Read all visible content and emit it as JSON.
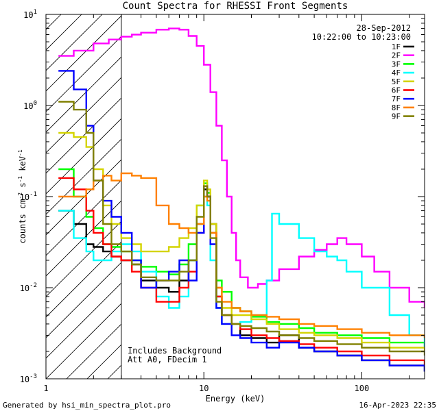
{
  "chart_data": {
    "type": "line",
    "title": "Count Spectra for RHESSI Front Segments",
    "xlabel": "Energy (keV)",
    "ylabel": "counts cm",
    "ylabel_parts": {
      "base": "counts cm",
      "e1": "-2",
      "mid": " s",
      "e2": "-1",
      "unit": " keV",
      "e3": "-1"
    },
    "x_scale": "log",
    "y_scale": "log",
    "xlim": [
      1,
      250
    ],
    "ylim": [
      0.001,
      10
    ],
    "x_ticks": [
      {
        "value": 1,
        "label": "1"
      },
      {
        "value": 10,
        "label": "10"
      },
      {
        "value": 100,
        "label": "100"
      }
    ],
    "y_ticks": [
      {
        "value": 0.001,
        "base": "10",
        "exp": "-3"
      },
      {
        "value": 0.01,
        "base": "10",
        "exp": "-2"
      },
      {
        "value": 0.1,
        "base": "10",
        "exp": "-1"
      },
      {
        "value": 1,
        "base": "10",
        "exp": "0"
      },
      {
        "value": 10,
        "base": "10",
        "exp": "1"
      }
    ],
    "date": "28-Sep-2012",
    "time_range": "10:22:00 to 10:23:00",
    "annotation_lines": [
      "Includes Background",
      "Att A0, FDecim 1"
    ],
    "shaded_region": [
      1,
      3
    ],
    "legend_position": "top-right",
    "footer_left": "Generated by hsi_min_spectra_plot.pro",
    "footer_right": "16-Apr-2023 22:35",
    "series": [
      {
        "name": "1F",
        "color": "#000000",
        "x": [
          1.2,
          1.5,
          1.8,
          2.0,
          2.3,
          2.6,
          3.0,
          3.5,
          4.0,
          5.0,
          6.0,
          7.0,
          8.0,
          9.0,
          10.0,
          10.5,
          11.0,
          12.0,
          13.0,
          15.0,
          17.0,
          20.0,
          25.0,
          30.0,
          40.0,
          50.0,
          70.0,
          100.0,
          150.0,
          250.0
        ],
        "y": [
          0.07,
          0.05,
          0.03,
          0.028,
          0.025,
          0.022,
          0.02,
          0.018,
          0.012,
          0.01,
          0.009,
          0.012,
          0.02,
          0.05,
          0.12,
          0.1,
          0.05,
          0.008,
          0.005,
          0.004,
          0.003,
          0.0028,
          0.0025,
          0.003,
          0.0022,
          0.002,
          0.0018,
          0.0016,
          0.0014,
          0.0012
        ]
      },
      {
        "name": "2F",
        "color": "#ff00ff",
        "x": [
          1.2,
          1.5,
          2.0,
          2.5,
          3.0,
          3.5,
          4.0,
          5.0,
          6.0,
          6.5,
          7.0,
          8.0,
          9.0,
          10.0,
          11.0,
          12.0,
          13.0,
          14.0,
          15.0,
          16.0,
          17.0,
          19.0,
          22.0,
          25.0,
          30.0,
          40.0,
          50.0,
          60.0,
          70.0,
          80.0,
          100.0,
          120.0,
          150.0,
          200.0,
          250.0
        ],
        "y": [
          3.5,
          4.0,
          4.8,
          5.3,
          5.7,
          6.0,
          6.3,
          6.8,
          7.0,
          7.0,
          6.8,
          5.8,
          4.5,
          2.8,
          1.4,
          0.6,
          0.25,
          0.1,
          0.04,
          0.02,
          0.013,
          0.01,
          0.011,
          0.012,
          0.016,
          0.022,
          0.026,
          0.03,
          0.035,
          0.03,
          0.022,
          0.015,
          0.01,
          0.007,
          0.006
        ]
      },
      {
        "name": "3F",
        "color": "#00ff00",
        "x": [
          1.2,
          1.5,
          1.8,
          2.0,
          2.3,
          2.6,
          3.0,
          3.5,
          4.0,
          5.0,
          6.0,
          7.0,
          8.0,
          9.0,
          10.0,
          10.5,
          11.0,
          12.0,
          13.0,
          15.0,
          17.0,
          20.0,
          25.0,
          30.0,
          40.0,
          50.0,
          70.0,
          100.0,
          150.0,
          250.0
        ],
        "y": [
          0.2,
          0.1,
          0.06,
          0.045,
          0.03,
          0.028,
          0.025,
          0.02,
          0.017,
          0.015,
          0.014,
          0.018,
          0.03,
          0.08,
          0.14,
          0.11,
          0.04,
          0.012,
          0.009,
          0.006,
          0.0055,
          0.0048,
          0.0042,
          0.004,
          0.0036,
          0.0032,
          0.003,
          0.0028,
          0.0025,
          0.0022
        ]
      },
      {
        "name": "4F",
        "color": "#00ffff",
        "x": [
          1.2,
          1.5,
          1.8,
          2.0,
          2.3,
          2.6,
          3.0,
          3.5,
          4.0,
          5.0,
          6.0,
          7.0,
          8.0,
          9.0,
          10.0,
          10.5,
          11.0,
          12.0,
          13.0,
          15.0,
          17.0,
          20.0,
          25.0,
          27.0,
          30.0,
          40.0,
          50.0,
          60.0,
          70.0,
          80.0,
          100.0,
          150.0,
          200.0,
          250.0
        ],
        "y": [
          0.07,
          0.035,
          0.025,
          0.02,
          0.02,
          0.025,
          0.03,
          0.025,
          0.015,
          0.008,
          0.006,
          0.008,
          0.02,
          0.05,
          0.1,
          0.08,
          0.02,
          0.006,
          0.004,
          0.004,
          0.0042,
          0.005,
          0.012,
          0.065,
          0.05,
          0.035,
          0.025,
          0.022,
          0.02,
          0.015,
          0.01,
          0.005,
          0.003,
          0.0022
        ]
      },
      {
        "name": "5F",
        "color": "#d4d400",
        "x": [
          1.2,
          1.5,
          1.8,
          2.0,
          2.3,
          2.6,
          3.0,
          3.5,
          4.0,
          5.0,
          6.0,
          7.0,
          8.0,
          9.0,
          10.0,
          10.5,
          11.0,
          12.0,
          13.0,
          15.0,
          17.0,
          20.0,
          25.0,
          30.0,
          40.0,
          50.0,
          70.0,
          100.0,
          150.0,
          250.0
        ],
        "y": [
          0.5,
          0.45,
          0.35,
          0.2,
          0.08,
          0.05,
          0.035,
          0.03,
          0.025,
          0.025,
          0.028,
          0.035,
          0.045,
          0.08,
          0.15,
          0.12,
          0.05,
          0.01,
          0.006,
          0.005,
          0.005,
          0.0045,
          0.004,
          0.0035,
          0.0032,
          0.003,
          0.0028,
          0.0025,
          0.0022,
          0.002
        ]
      },
      {
        "name": "6F",
        "color": "#ff0000",
        "x": [
          1.2,
          1.5,
          1.8,
          2.0,
          2.3,
          2.6,
          3.0,
          3.5,
          4.0,
          5.0,
          6.0,
          7.0,
          8.0,
          9.0,
          10.0,
          10.5,
          11.0,
          12.0,
          13.0,
          15.0,
          17.0,
          20.0,
          25.0,
          30.0,
          40.0,
          50.0,
          70.0,
          100.0,
          150.0,
          250.0
        ],
        "y": [
          0.16,
          0.12,
          0.07,
          0.04,
          0.03,
          0.022,
          0.02,
          0.015,
          0.01,
          0.007,
          0.007,
          0.01,
          0.015,
          0.04,
          0.13,
          0.1,
          0.04,
          0.008,
          0.005,
          0.004,
          0.0035,
          0.003,
          0.0028,
          0.0026,
          0.0024,
          0.0022,
          0.002,
          0.0018,
          0.0016,
          0.0014
        ]
      },
      {
        "name": "7F",
        "color": "#0000ff",
        "x": [
          1.2,
          1.5,
          1.8,
          2.0,
          2.3,
          2.6,
          3.0,
          3.5,
          4.0,
          5.0,
          6.0,
          7.0,
          8.0,
          9.0,
          10.0,
          10.5,
          11.0,
          12.0,
          13.0,
          15.0,
          17.0,
          20.0,
          25.0,
          30.0,
          40.0,
          50.0,
          70.0,
          100.0,
          150.0,
          250.0
        ],
        "y": [
          2.4,
          1.5,
          0.6,
          0.15,
          0.09,
          0.06,
          0.04,
          0.02,
          0.01,
          0.012,
          0.015,
          0.02,
          0.012,
          0.04,
          0.13,
          0.1,
          0.03,
          0.006,
          0.004,
          0.003,
          0.0028,
          0.0025,
          0.0022,
          0.0025,
          0.0022,
          0.002,
          0.0018,
          0.0016,
          0.0014,
          0.0012
        ]
      },
      {
        "name": "8F",
        "color": "#ff8000",
        "x": [
          1.2,
          1.5,
          1.8,
          2.0,
          2.3,
          2.6,
          3.0,
          3.5,
          4.0,
          5.0,
          6.0,
          7.0,
          8.0,
          9.0,
          10.0,
          10.5,
          11.0,
          12.0,
          13.0,
          15.0,
          17.0,
          20.0,
          25.0,
          30.0,
          40.0,
          50.0,
          70.0,
          100.0,
          150.0,
          250.0
        ],
        "y": [
          0.1,
          0.1,
          0.12,
          0.15,
          0.17,
          0.15,
          0.18,
          0.17,
          0.16,
          0.08,
          0.05,
          0.045,
          0.04,
          0.05,
          0.1,
          0.09,
          0.04,
          0.01,
          0.007,
          0.006,
          0.0055,
          0.005,
          0.0048,
          0.0045,
          0.004,
          0.0038,
          0.0035,
          0.0032,
          0.003,
          0.0028
        ]
      },
      {
        "name": "9F",
        "color": "#808000",
        "x": [
          1.2,
          1.5,
          1.8,
          2.0,
          2.3,
          2.6,
          3.0,
          3.5,
          4.0,
          5.0,
          6.0,
          7.0,
          8.0,
          9.0,
          10.0,
          10.5,
          11.0,
          12.0,
          13.0,
          15.0,
          17.0,
          20.0,
          25.0,
          30.0,
          40.0,
          50.0,
          70.0,
          100.0,
          150.0,
          250.0
        ],
        "y": [
          1.1,
          0.9,
          0.5,
          0.15,
          0.05,
          0.03,
          0.025,
          0.018,
          0.013,
          0.012,
          0.012,
          0.015,
          0.02,
          0.06,
          0.13,
          0.1,
          0.035,
          0.007,
          0.005,
          0.004,
          0.0038,
          0.0036,
          0.0033,
          0.003,
          0.0028,
          0.0026,
          0.0024,
          0.0022,
          0.002,
          0.0018
        ]
      }
    ]
  }
}
